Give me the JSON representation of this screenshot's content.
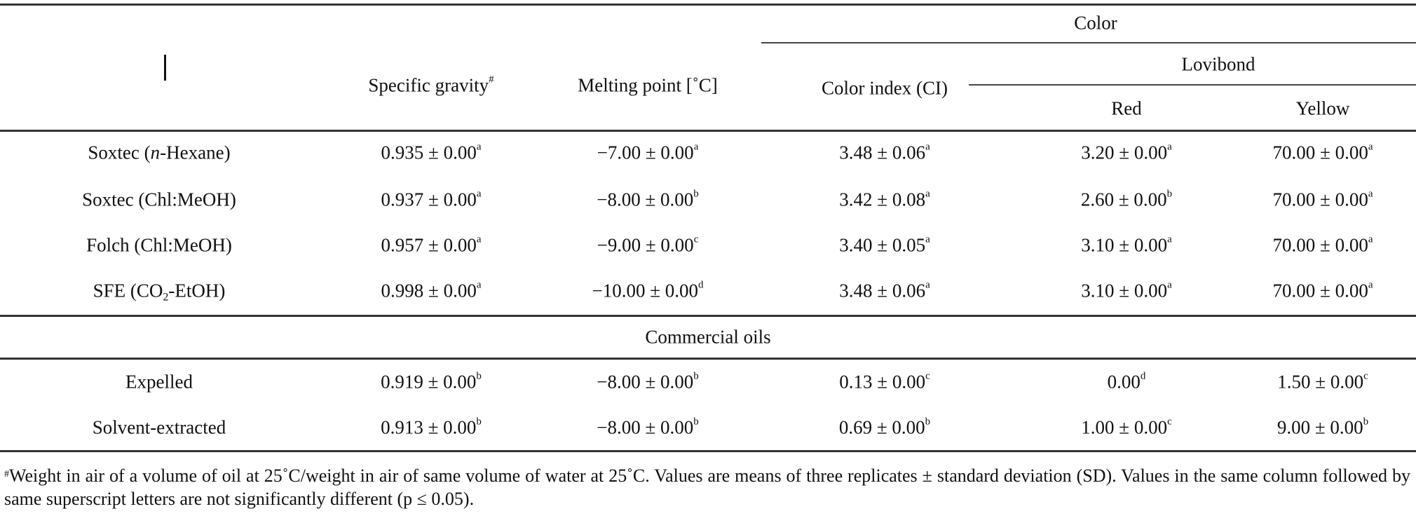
{
  "table": {
    "headers": {
      "specific_gravity": "Specific gravity",
      "specific_gravity_mark": "#",
      "melting_point": "Melting point [˚C]",
      "color": "Color",
      "color_index": "Color index (CI)",
      "lovibond": "Lovibond",
      "red": "Red",
      "yellow": "Yellow"
    },
    "rows": [
      {
        "label": [
          {
            "t": "Soxtec ("
          },
          {
            "t": "n",
            "s": "i"
          },
          {
            "t": "-Hexane)"
          }
        ],
        "cells": [
          [
            "0.935 ± 0.00",
            "a"
          ],
          [
            "−7.00 ± 0.00",
            "a"
          ],
          [
            "3.48 ± 0.06",
            "a"
          ],
          [
            "3.20 ± 0.00",
            "a"
          ],
          [
            "70.00 ± 0.00",
            "a"
          ]
        ]
      },
      {
        "label": [
          {
            "t": "Soxtec (Chl:MeOH)"
          }
        ],
        "cells": [
          [
            "0.937 ± 0.00",
            "a"
          ],
          [
            "−8.00 ± 0.00",
            "b"
          ],
          [
            "3.42 ± 0.08",
            "a"
          ],
          [
            "2.60 ± 0.00",
            "b"
          ],
          [
            "70.00 ± 0.00",
            "a"
          ]
        ]
      },
      {
        "label": [
          {
            "t": "Folch (Chl:MeOH)"
          }
        ],
        "cells": [
          [
            "0.957 ± 0.00",
            "a"
          ],
          [
            "−9.00 ± 0.00",
            "c"
          ],
          [
            "3.40 ± 0.05",
            "a"
          ],
          [
            "3.10 ± 0.00",
            "a"
          ],
          [
            "70.00 ± 0.00",
            "a"
          ]
        ]
      },
      {
        "label": [
          {
            "t": "SFE (CO"
          },
          {
            "t": "2",
            "s": "sub"
          },
          {
            "t": "-EtOH)"
          }
        ],
        "cells": [
          [
            "0.998 ± 0.00",
            "a"
          ],
          [
            "−10.00 ± 0.00",
            "d"
          ],
          [
            "3.48 ± 0.06",
            "a"
          ],
          [
            "3.10 ± 0.00",
            "a"
          ],
          [
            "70.00 ± 0.00",
            "a"
          ]
        ]
      }
    ],
    "section_label": "Commercial oils",
    "commercial_rows": [
      {
        "label": [
          {
            "t": "Expelled"
          }
        ],
        "cells": [
          [
            "0.919 ± 0.00",
            "b"
          ],
          [
            "−8.00 ± 0.00",
            "b"
          ],
          [
            "0.13 ± 0.00",
            "c"
          ],
          [
            "0.00",
            "d"
          ],
          [
            "1.50 ± 0.00",
            "c"
          ]
        ]
      },
      {
        "label": [
          {
            "t": "Solvent-extracted"
          }
        ],
        "cells": [
          [
            "0.913 ± 0.00",
            "b"
          ],
          [
            "−8.00 ± 0.00",
            "b"
          ],
          [
            "0.69 ± 0.00",
            "b"
          ],
          [
            "1.00 ± 0.00",
            "c"
          ],
          [
            "9.00 ± 0.00",
            "b"
          ]
        ]
      }
    ]
  },
  "footnote": {
    "mark": "#",
    "text": "Weight in air of a volume of oil at 25˚C/weight in air of same volume of water at 25˚C. Values are means of three replicates ± standard deviation (SD). Values in the same column followed by same superscript letters are not significantly different (p ≤ 0.05)."
  }
}
